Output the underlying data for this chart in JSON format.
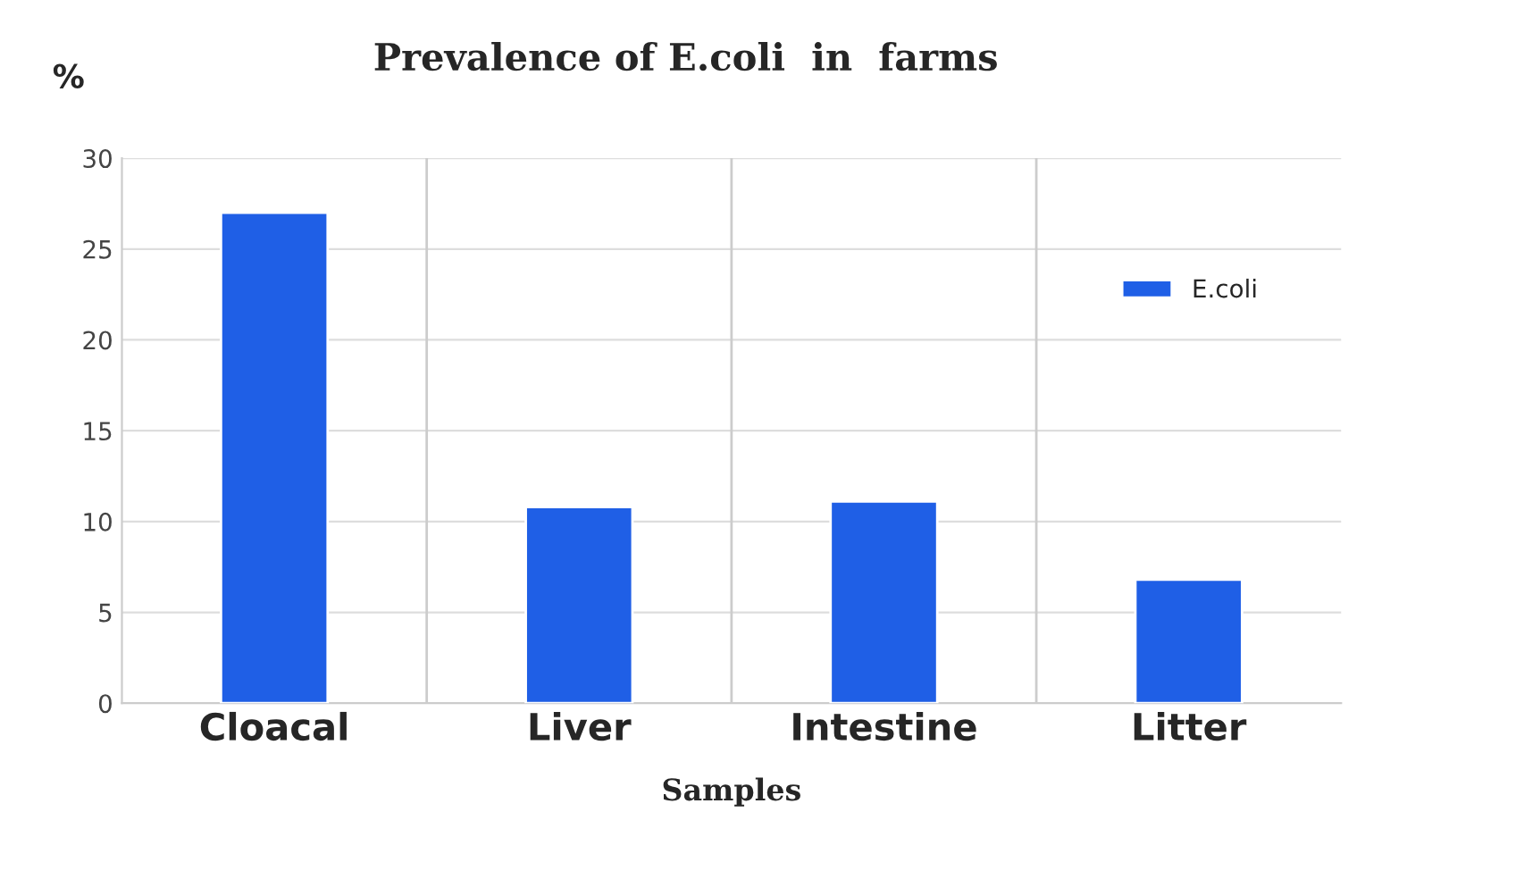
{
  "chart_data": {
    "type": "bar",
    "title": "Prevalence of E.coli  in  farms",
    "ylabel": "%",
    "xlabel": "Samples",
    "categories": [
      "Cloacal",
      "Liver",
      "Intestine",
      "Litter"
    ],
    "series": [
      {
        "name": "E.coli",
        "color": "#1f5fe6",
        "values": [
          27,
          10.8,
          11.1,
          6.8
        ]
      }
    ],
    "ylim": [
      0,
      30
    ],
    "yticks": [
      0,
      5,
      10,
      15,
      20,
      25,
      30
    ],
    "grid": "y",
    "legend": "top right"
  }
}
